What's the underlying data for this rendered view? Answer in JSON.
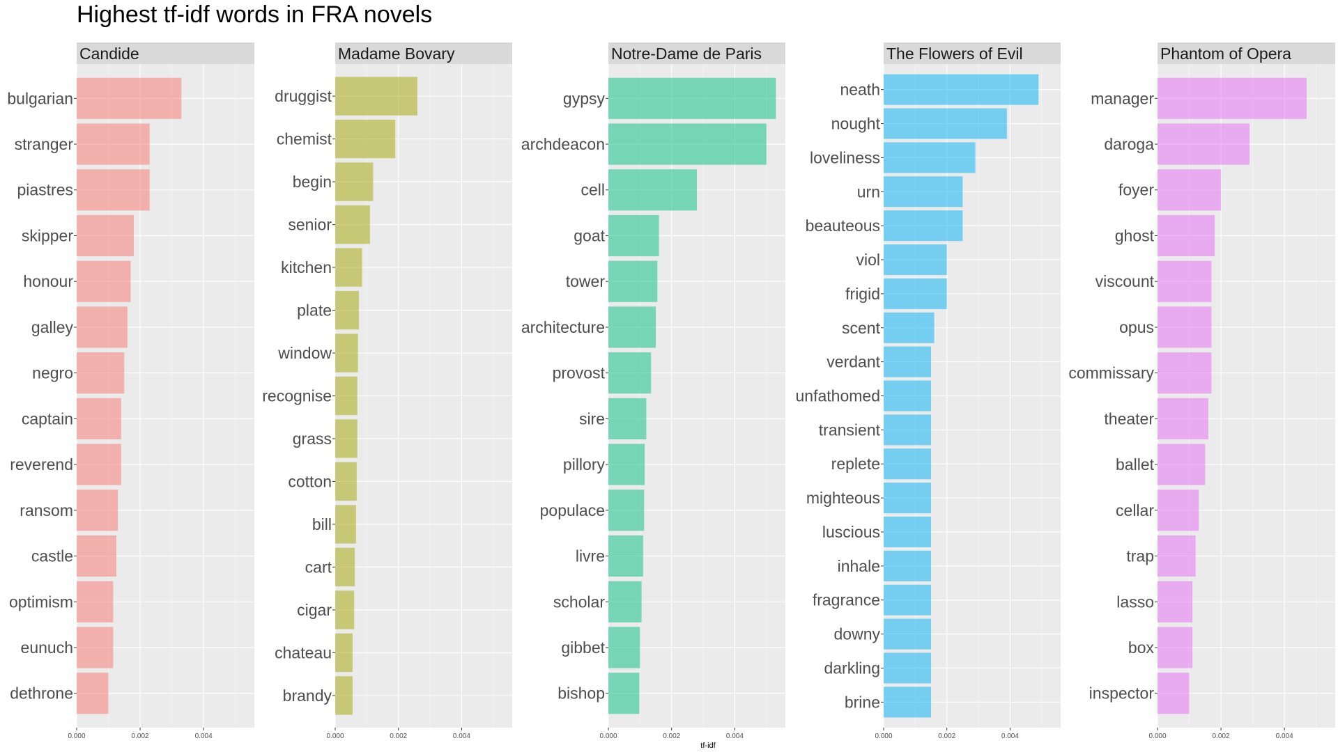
{
  "chart_data": {
    "type": "bar",
    "orientation": "horizontal",
    "title": "Highest tf-idf words in FRA novels",
    "xlabel": "tf-idf",
    "ylabel": "",
    "xlim": [
      0,
      0.0056
    ],
    "x_ticks": [
      0,
      0.002,
      0.004
    ],
    "x_tick_labels": [
      "0.000",
      "0.002",
      "0.004"
    ],
    "grid": true,
    "legend": "none",
    "panels": [
      {
        "name": "Candide",
        "color": "#F8766D",
        "categories": [
          "bulgarian",
          "stranger",
          "piastres",
          "skipper",
          "honour",
          "galley",
          "negro",
          "captain",
          "reverend",
          "ransom",
          "castle",
          "optimism",
          "eunuch",
          "dethrone"
        ],
        "values": [
          0.0033,
          0.0023,
          0.0023,
          0.0018,
          0.0017,
          0.0016,
          0.0015,
          0.0014,
          0.0014,
          0.0013,
          0.00125,
          0.00115,
          0.00115,
          0.001
        ]
      },
      {
        "name": "Madame Bovary",
        "color": "#A3A500",
        "categories": [
          "druggist",
          "chemist",
          "begin",
          "senior",
          "kitchen",
          "plate",
          "window",
          "recognise",
          "grass",
          "cotton",
          "bill",
          "cart",
          "cigar",
          "chateau",
          "brandy"
        ],
        "values": [
          0.0026,
          0.0019,
          0.0012,
          0.0011,
          0.00085,
          0.00075,
          0.00072,
          0.0007,
          0.0007,
          0.00068,
          0.00066,
          0.00062,
          0.0006,
          0.00055,
          0.00055
        ]
      },
      {
        "name": "Notre-Dame de Paris",
        "color": "#00BF7D",
        "categories": [
          "gypsy",
          "archdeacon",
          "cell",
          "goat",
          "tower",
          "architecture",
          "provost",
          "sire",
          "pillory",
          "populace",
          "livre",
          "scholar",
          "gibbet",
          "bishop"
        ],
        "values": [
          0.0053,
          0.005,
          0.0028,
          0.0016,
          0.00155,
          0.0015,
          0.00135,
          0.0012,
          0.00115,
          0.00113,
          0.0011,
          0.00105,
          0.001,
          0.00098
        ]
      },
      {
        "name": "The Flowers of Evil",
        "color": "#00B0F6",
        "categories": [
          "neath",
          "nought",
          "loveliness",
          "urn",
          "beauteous",
          "viol",
          "frigid",
          "scent",
          "verdant",
          "unfathomed",
          "transient",
          "replete",
          "mighteous",
          "luscious",
          "inhale",
          "fragrance",
          "downy",
          "darkling",
          "brine"
        ],
        "values": [
          0.0049,
          0.0039,
          0.0029,
          0.0025,
          0.0025,
          0.002,
          0.002,
          0.0016,
          0.0015,
          0.0015,
          0.0015,
          0.0015,
          0.0015,
          0.0015,
          0.0015,
          0.0015,
          0.0015,
          0.0015,
          0.0015
        ]
      },
      {
        "name": "Phantom of Opera",
        "color": "#E76BF3",
        "categories": [
          "manager",
          "daroga",
          "foyer",
          "ghost",
          "viscount",
          "opus",
          "commissary",
          "theater",
          "ballet",
          "cellar",
          "trap",
          "lasso",
          "box",
          "inspector"
        ],
        "values": [
          0.0047,
          0.0029,
          0.002,
          0.0018,
          0.0017,
          0.0017,
          0.0017,
          0.0016,
          0.0015,
          0.0013,
          0.0012,
          0.0011,
          0.0011,
          0.001
        ]
      }
    ]
  }
}
